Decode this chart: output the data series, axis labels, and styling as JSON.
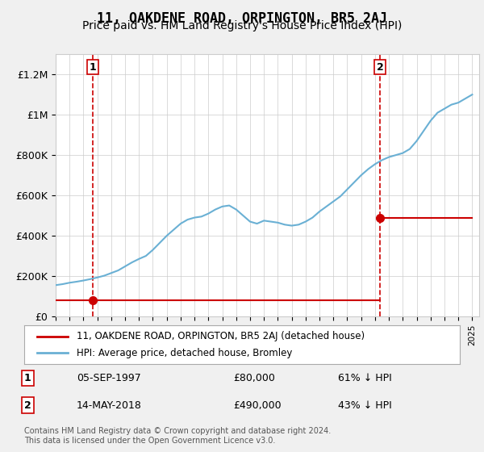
{
  "title": "11, OAKDENE ROAD, ORPINGTON, BR5 2AJ",
  "subtitle": "Price paid vs. HM Land Registry's House Price Index (HPI)",
  "title_fontsize": 12,
  "subtitle_fontsize": 10,
  "bg_color": "#f0f0f0",
  "plot_bg_color": "#ffffff",
  "ylim": [
    0,
    1300000
  ],
  "yticks": [
    0,
    200000,
    400000,
    600000,
    800000,
    1000000,
    1200000
  ],
  "ytick_labels": [
    "£0",
    "£200K",
    "£400K",
    "£600K",
    "£800K",
    "£1M",
    "£1.2M"
  ],
  "x_start_year": 1995,
  "x_end_year": 2025,
  "sale1_year": 1997.67,
  "sale1_price": 80000,
  "sale2_year": 2018.37,
  "sale2_price": 490000,
  "sale1_label": "1",
  "sale2_label": "2",
  "hpi_color": "#6ab0d4",
  "sale_color": "#cc0000",
  "marker_color": "#cc0000",
  "vline_color": "#cc0000",
  "legend_label_sale": "11, OAKDENE ROAD, ORPINGTON, BR5 2AJ (detached house)",
  "legend_label_hpi": "HPI: Average price, detached house, Bromley",
  "annotation1_date": "05-SEP-1997",
  "annotation1_price": "£80,000",
  "annotation1_pct": "61% ↓ HPI",
  "annotation2_date": "14-MAY-2018",
  "annotation2_price": "£490,000",
  "annotation2_pct": "43% ↓ HPI",
  "footer": "Contains HM Land Registry data © Crown copyright and database right 2024.\nThis data is licensed under the Open Government Licence v3.0.",
  "hpi_data_years": [
    1995,
    1995.5,
    1996,
    1996.5,
    1997,
    1997.5,
    1998,
    1998.5,
    1999,
    1999.5,
    2000,
    2000.5,
    2001,
    2001.5,
    2002,
    2002.5,
    2003,
    2003.5,
    2004,
    2004.5,
    2005,
    2005.5,
    2006,
    2006.5,
    2007,
    2007.5,
    2008,
    2008.5,
    2009,
    2009.5,
    2010,
    2010.5,
    2011,
    2011.5,
    2012,
    2012.5,
    2013,
    2013.5,
    2014,
    2014.5,
    2015,
    2015.5,
    2016,
    2016.5,
    2017,
    2017.5,
    2018,
    2018.5,
    2019,
    2019.5,
    2020,
    2020.5,
    2021,
    2021.5,
    2022,
    2022.5,
    2023,
    2023.5,
    2024,
    2024.5,
    2025
  ],
  "hpi_data_values": [
    155000,
    160000,
    167000,
    172000,
    178000,
    185000,
    193000,
    202000,
    215000,
    228000,
    248000,
    268000,
    285000,
    300000,
    330000,
    365000,
    400000,
    430000,
    460000,
    480000,
    490000,
    495000,
    510000,
    530000,
    545000,
    550000,
    530000,
    500000,
    470000,
    460000,
    475000,
    470000,
    465000,
    455000,
    450000,
    455000,
    470000,
    490000,
    520000,
    545000,
    570000,
    595000,
    630000,
    665000,
    700000,
    730000,
    755000,
    775000,
    790000,
    800000,
    810000,
    830000,
    870000,
    920000,
    970000,
    1010000,
    1030000,
    1050000,
    1060000,
    1080000,
    1100000
  ],
  "sale_data_years": [
    1995,
    1997.67,
    1997.67,
    2018.37,
    2018.37,
    2025
  ],
  "sale_data_values": [
    80000,
    80000,
    80000,
    490000,
    490000,
    490000
  ]
}
